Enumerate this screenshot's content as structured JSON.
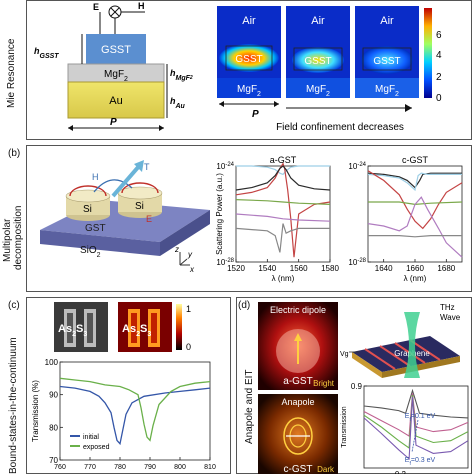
{
  "panel_a": {
    "side_label": "Mie Resonance",
    "top_symbols": {
      "e": "E",
      "h": "H",
      "k": "k"
    },
    "stack": {
      "gsst": "GSST",
      "mgf2": "MgF",
      "mgf2_sub": "2",
      "au": "Au",
      "h_gsst": "h",
      "h_gsst_sub": "GSST",
      "h_mgf2": "h",
      "h_mgf2_sub": "MgF",
      "h_mgf2_sub2": "2",
      "h_au": "h",
      "h_au_sub": "Au",
      "p": "P"
    },
    "maps": [
      {
        "air": "Air",
        "gsst": "GSST",
        "mgf2": "MgF",
        "mgf2_sub": "2"
      },
      {
        "air": "Air",
        "gsst": "GSST",
        "mgf2": "MgF",
        "mgf2_sub": "2"
      },
      {
        "air": "Air",
        "gsst": "GSST",
        "mgf2": "MgF",
        "mgf2_sub": "2"
      }
    ],
    "map_p": "P",
    "colorbar_ticks": [
      "6",
      "4",
      "2",
      "0"
    ],
    "arrow_caption": "Field confinement decreases"
  },
  "panel_b": {
    "tag": "(b)",
    "side_label_1": "Multipolar",
    "side_label_2": "decomposition",
    "schematic": {
      "h": "H",
      "t": "T",
      "e": "E",
      "si1": "Si",
      "si2": "Si",
      "gst": "GST",
      "sio2": "SiO",
      "sio2_sub": "2",
      "ax_z": "z",
      "ax_y": "y",
      "ax_x": "x"
    }
  },
  "panel_c": {
    "tag": "(c)",
    "side_label": "Bound-states-in-the-continuum",
    "sem_label_1": "As",
    "sem_sub_1": "2",
    "sem_label_2": "S",
    "sem_sub_2": "3",
    "field_label_1": "As",
    "field_sub_1": "2",
    "field_label_2": "S",
    "field_sub_2": "3",
    "colorbar_ticks": [
      "1",
      "0"
    ]
  },
  "panel_d": {
    "tag": "(d)",
    "side_label": "Anapole and EIT",
    "top_title": "Electric dipole",
    "top_material": "a-GST",
    "top_state": "Bright",
    "bottom_title": "Anapole",
    "bottom_material": "c-GST",
    "bottom_state": "Dark",
    "thz_line_1": "THz",
    "thz_line_2": "Wave",
    "graphene": "Graphene",
    "vg": "Vg"
  },
  "chart_data": [
    {
      "id": "b-left",
      "type": "line",
      "title": "a-GST",
      "xlabel": "λ (nm)",
      "ylabel": "Scattering Power (a.u.)",
      "xlim": [
        1520,
        1580
      ],
      "ylim_log": [
        -28,
        -24
      ],
      "xticks": [
        1520,
        1540,
        1560,
        1580
      ],
      "yticks": [
        {
          "value": -24,
          "base": "10",
          "exp": "-24"
        },
        {
          "value": -28,
          "base": "10",
          "exp": "-28"
        }
      ],
      "series": [
        {
          "color": "#9ecfe6",
          "x": [
            1520,
            1530,
            1540,
            1545,
            1548,
            1550,
            1552,
            1555,
            1560,
            1570,
            1580
          ],
          "y": [
            -24.0,
            -24.0,
            -24.05,
            -24.15,
            -24.3,
            -24.35,
            -24.2,
            -24.05,
            -24.0,
            -24.0,
            -24.0
          ]
        },
        {
          "color": "#c44444",
          "x": [
            1520,
            1530,
            1540,
            1545,
            1548,
            1550,
            1551,
            1553,
            1555,
            1557,
            1560,
            1570,
            1580
          ],
          "y": [
            -25.2,
            -25.1,
            -24.9,
            -24.5,
            -24.1,
            -23.9,
            -24.1,
            -25.0,
            -26.2,
            -27.8,
            -26.0,
            -25.6,
            -25.5
          ]
        },
        {
          "color": "#2a2a2a",
          "x": [
            1520,
            1530,
            1540,
            1545,
            1548,
            1550,
            1552,
            1555,
            1560,
            1570,
            1580
          ],
          "y": [
            -25.0,
            -24.9,
            -24.7,
            -24.4,
            -24.1,
            -24.0,
            -24.15,
            -24.5,
            -24.8,
            -24.95,
            -25.0
          ]
        },
        {
          "color": "#7aa84a",
          "x": [
            1520,
            1540,
            1550,
            1560,
            1580
          ],
          "y": [
            -25.4,
            -25.45,
            -25.5,
            -25.55,
            -25.6
          ]
        },
        {
          "color": "#b07cc0",
          "x": [
            1520,
            1540,
            1550,
            1560,
            1580
          ],
          "y": [
            -26.0,
            -26.1,
            -26.2,
            -26.25,
            -26.3
          ]
        },
        {
          "color": "#888888",
          "x": [
            1520,
            1540,
            1545,
            1548,
            1550,
            1552,
            1555,
            1560,
            1580
          ],
          "y": [
            -26.6,
            -26.7,
            -26.9,
            -27.6,
            -26.4,
            -26.8,
            -26.7,
            -26.6,
            -26.6
          ]
        }
      ]
    },
    {
      "id": "b-right",
      "type": "line",
      "title": "c-GST",
      "xlabel": "λ (nm)",
      "xlim": [
        1630,
        1690
      ],
      "ylim_log": [
        -28,
        -24
      ],
      "xticks": [
        1640,
        1660,
        1680
      ],
      "yticks": [
        {
          "value": -24,
          "base": "10",
          "exp": "-24"
        },
        {
          "value": -28,
          "base": "10",
          "exp": "-28"
        }
      ],
      "series": [
        {
          "color": "#2a2a2a",
          "x": [
            1630,
            1640,
            1650,
            1655,
            1660,
            1663,
            1665,
            1670,
            1680,
            1690
          ],
          "y": [
            -24.3,
            -24.35,
            -24.45,
            -24.6,
            -24.9,
            -24.6,
            -24.35,
            -24.3,
            -24.3,
            -24.3
          ]
        },
        {
          "color": "#9ecfe6",
          "x": [
            1630,
            1640,
            1650,
            1655,
            1660,
            1662,
            1664,
            1668,
            1680,
            1690
          ],
          "y": [
            -24.35,
            -24.4,
            -24.5,
            -24.7,
            -25.0,
            -24.4,
            -24.3,
            -24.35,
            -24.35,
            -24.35
          ]
        },
        {
          "color": "#c44444",
          "x": [
            1630,
            1640,
            1650,
            1655,
            1660,
            1665,
            1670,
            1675,
            1680,
            1690
          ],
          "y": [
            -24.2,
            -24.6,
            -25.2,
            -25.8,
            -26.3,
            -26.6,
            -26.2,
            -25.6,
            -25.1,
            -24.7
          ]
        },
        {
          "color": "#7aa84a",
          "x": [
            1630,
            1650,
            1660,
            1670,
            1690
          ],
          "y": [
            -25.5,
            -25.5,
            -25.6,
            -25.55,
            -25.5
          ]
        },
        {
          "color": "#b07cc0",
          "x": [
            1630,
            1640,
            1650,
            1655,
            1660,
            1664,
            1668,
            1675,
            1680,
            1690
          ],
          "y": [
            -26.4,
            -26.5,
            -26.7,
            -26.5,
            -25.6,
            -25.3,
            -25.8,
            -26.6,
            -27.2,
            -27.8
          ]
        },
        {
          "color": "#888888",
          "x": [
            1630,
            1650,
            1660,
            1670,
            1690
          ],
          "y": [
            -26.9,
            -26.9,
            -26.95,
            -26.9,
            -26.9
          ]
        }
      ]
    },
    {
      "id": "c-trans",
      "type": "line",
      "ylabel": "Transmission (%)",
      "xlim": [
        760,
        810
      ],
      "ylim": [
        70,
        100
      ],
      "xticks": [
        760,
        770,
        780,
        790,
        800,
        810
      ],
      "yticks": [
        70,
        80,
        90,
        100
      ],
      "legend": [
        "initial",
        "exposed"
      ],
      "legend_placement": "bottom-left",
      "series": [
        {
          "name": "initial",
          "color": "#3456a8",
          "x": [
            760,
            765,
            770,
            773,
            775,
            777,
            778,
            779,
            780,
            781,
            782,
            784,
            788,
            795,
            800,
            805,
            810
          ],
          "y": [
            92.5,
            92.0,
            91.0,
            89.5,
            87.5,
            84.5,
            80.0,
            76.0,
            75.0,
            79.5,
            84.0,
            87.5,
            89.5,
            90.5,
            91.0,
            91.5,
            92.0
          ]
        },
        {
          "name": "exposed",
          "color": "#6ab04a",
          "x": [
            760,
            765,
            770,
            775,
            780,
            783,
            786,
            787,
            788,
            789,
            790,
            791,
            793,
            797,
            800,
            805,
            810
          ],
          "y": [
            95.0,
            94.5,
            94.0,
            93.0,
            92.5,
            91.5,
            90.0,
            86.0,
            81.0,
            77.0,
            76.0,
            80.5,
            87.0,
            91.0,
            92.5,
            93.5,
            94.0
          ]
        }
      ]
    },
    {
      "id": "d-trans",
      "type": "line",
      "ylabel": "Transmission",
      "xlim": [
        0.1,
        0.4
      ],
      "ylim": [
        0.0,
        0.9
      ],
      "yticks": [
        0.9
      ],
      "xticks_shown": [
        "0.2"
      ],
      "annotations": [
        {
          "label": "E",
          "sub": "f",
          "rest": "=0.1 eV"
        },
        {
          "label": "E",
          "sub": "f",
          "rest": "=0.3 eV"
        }
      ],
      "series": [
        {
          "color": "#555555",
          "x": [
            0.1,
            0.15,
            0.2,
            0.22,
            0.24,
            0.26,
            0.3,
            0.35,
            0.4
          ],
          "y": [
            0.68,
            0.66,
            0.63,
            0.6,
            0.85,
            0.6,
            0.58,
            0.56,
            0.55
          ]
        },
        {
          "color": "#c06090",
          "x": [
            0.1,
            0.15,
            0.2,
            0.23,
            0.24,
            0.25,
            0.3,
            0.35,
            0.4
          ],
          "y": [
            0.62,
            0.52,
            0.42,
            0.35,
            0.82,
            0.45,
            0.4,
            0.42,
            0.5
          ]
        },
        {
          "color": "#6ab04a",
          "x": [
            0.1,
            0.15,
            0.2,
            0.23,
            0.24,
            0.25,
            0.3,
            0.35,
            0.4
          ],
          "y": [
            0.58,
            0.45,
            0.3,
            0.22,
            0.8,
            0.35,
            0.28,
            0.3,
            0.4
          ]
        },
        {
          "color": "#7a5ab0",
          "x": [
            0.1,
            0.15,
            0.2,
            0.23,
            0.24,
            0.25,
            0.3,
            0.35,
            0.4
          ],
          "y": [
            0.55,
            0.38,
            0.2,
            0.1,
            0.78,
            0.25,
            0.16,
            0.18,
            0.3
          ]
        }
      ]
    }
  ]
}
